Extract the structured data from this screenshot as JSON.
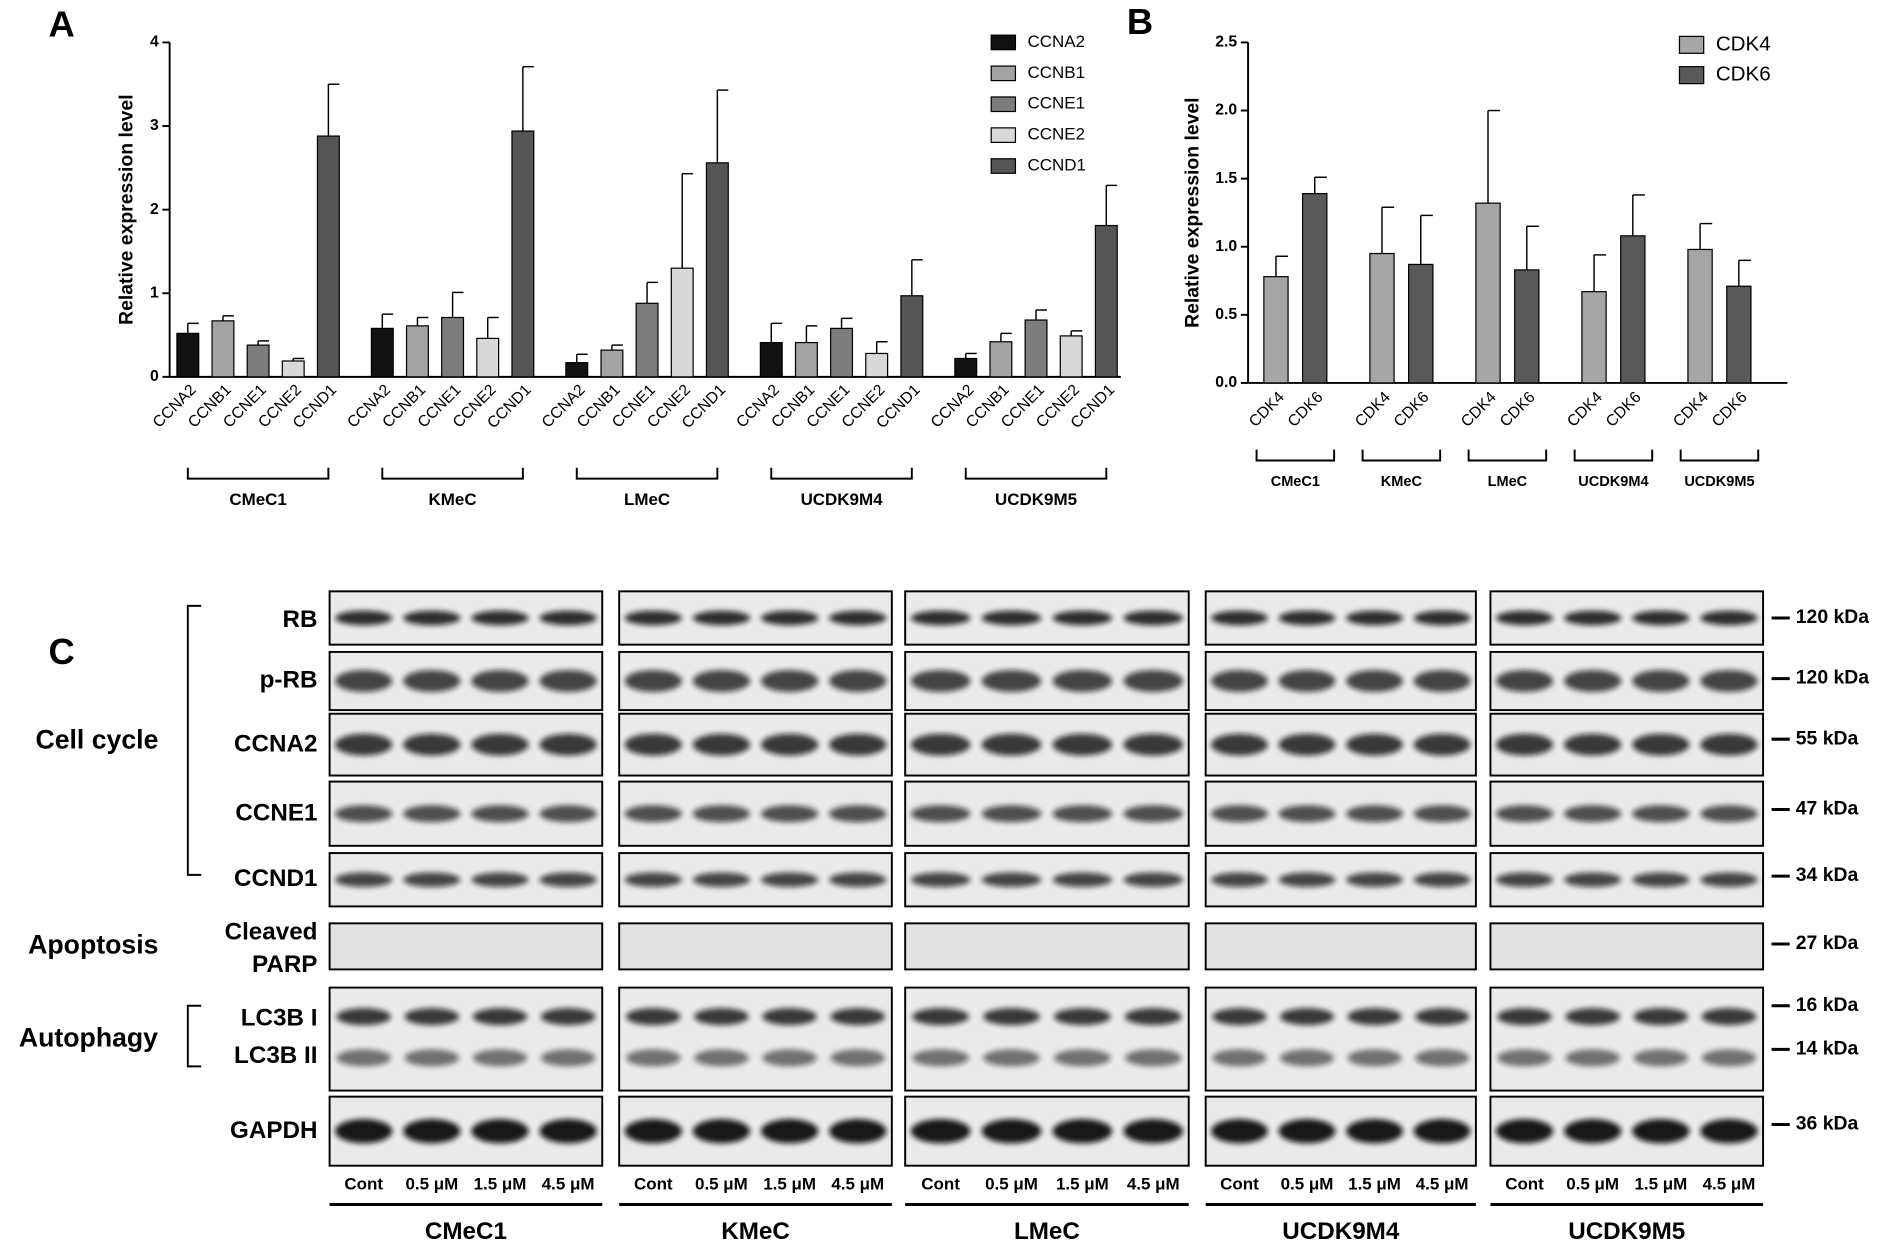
{
  "chart_data": [
    {
      "type": "bar",
      "panel_label": "A",
      "ylabel": "Relative expression level",
      "categories": [
        "CMeC1",
        "KMeC",
        "LMeC",
        "UCDK9M4",
        "UCDK9M5"
      ],
      "series": [
        {
          "name": "CCNA2",
          "color": "#111111",
          "values": [
            0.52,
            0.58,
            0.17,
            0.41,
            0.22
          ],
          "errors": [
            0.12,
            0.17,
            0.1,
            0.23,
            0.06
          ]
        },
        {
          "name": "CCNB1",
          "color": "#a3a3a3",
          "values": [
            0.67,
            0.61,
            0.32,
            0.41,
            0.42
          ],
          "errors": [
            0.06,
            0.1,
            0.06,
            0.2,
            0.1
          ]
        },
        {
          "name": "CCNE1",
          "color": "#7d7d7d",
          "values": [
            0.38,
            0.71,
            0.88,
            0.58,
            0.68
          ],
          "errors": [
            0.05,
            0.3,
            0.25,
            0.12,
            0.12
          ]
        },
        {
          "name": "CCNE2",
          "color": "#d9d9d9",
          "values": [
            0.19,
            0.46,
            1.3,
            0.28,
            0.49
          ],
          "errors": [
            0.03,
            0.25,
            1.13,
            0.14,
            0.06
          ]
        },
        {
          "name": "CCND1",
          "color": "#555555",
          "values": [
            2.88,
            2.94,
            2.56,
            0.97,
            1.81
          ],
          "errors": [
            0.62,
            0.77,
            0.87,
            0.43,
            0.48
          ]
        }
      ],
      "ylim": [
        0,
        4
      ],
      "yticks": [
        0,
        1,
        2,
        3,
        4
      ],
      "legend": "top-right"
    },
    {
      "type": "bar",
      "panel_label": "B",
      "ylabel": "Relative expression level",
      "categories": [
        "CMeC1",
        "KMeC",
        "LMeC",
        "UCDK9M4",
        "UCDK9M5"
      ],
      "series": [
        {
          "name": "CDK4",
          "color": "#a6a6a6",
          "values": [
            0.78,
            0.95,
            1.32,
            0.67,
            0.98
          ],
          "errors": [
            0.15,
            0.34,
            0.68,
            0.27,
            0.19
          ]
        },
        {
          "name": "CDK6",
          "color": "#595959",
          "values": [
            1.39,
            0.87,
            0.83,
            1.08,
            0.71
          ],
          "errors": [
            0.12,
            0.36,
            0.32,
            0.3,
            0.19
          ]
        }
      ],
      "ylim": [
        0,
        2.5
      ],
      "yticks": [
        {
          "value": 0,
          "label": "0.0"
        },
        0.5,
        {
          "value": 1,
          "label": "1.0"
        },
        1.5,
        {
          "value": 2,
          "label": "2.0"
        },
        2.5
      ],
      "legend": "top-right"
    }
  ],
  "blot": {
    "panel_label": "C",
    "rows": [
      {
        "labels": [
          "RB"
        ],
        "kda": [
          "120 kDa"
        ]
      },
      {
        "labels": [
          "p-RB"
        ],
        "kda": [
          "120 kDa"
        ]
      },
      {
        "labels": [
          "CCNA2"
        ],
        "kda": [
          "55 kDa"
        ]
      },
      {
        "labels": [
          "CCNE1"
        ],
        "kda": [
          "47 kDa"
        ]
      },
      {
        "labels": [
          "CCND1"
        ],
        "kda": [
          "34 kDa"
        ]
      },
      {
        "labels": [
          "Cleaved",
          "PARP"
        ],
        "kda": [
          "27 kDa"
        ]
      },
      {
        "labels": [
          "LC3B I",
          "LC3B II"
        ],
        "kda": [
          "16 kDa",
          "14 kDa"
        ]
      },
      {
        "labels": [
          "GAPDH"
        ],
        "kda": [
          "36 kDa"
        ]
      }
    ],
    "categories": [
      "Cell cycle",
      "Apoptosis",
      "Autophagy"
    ],
    "lanes": [
      "Cont",
      "0.5 μM",
      "1.5 μM",
      "4.5 μM"
    ],
    "groups": [
      "CMeC1",
      "KMeC",
      "LMeC",
      "UCDK9M4",
      "UCDK9M5"
    ]
  }
}
